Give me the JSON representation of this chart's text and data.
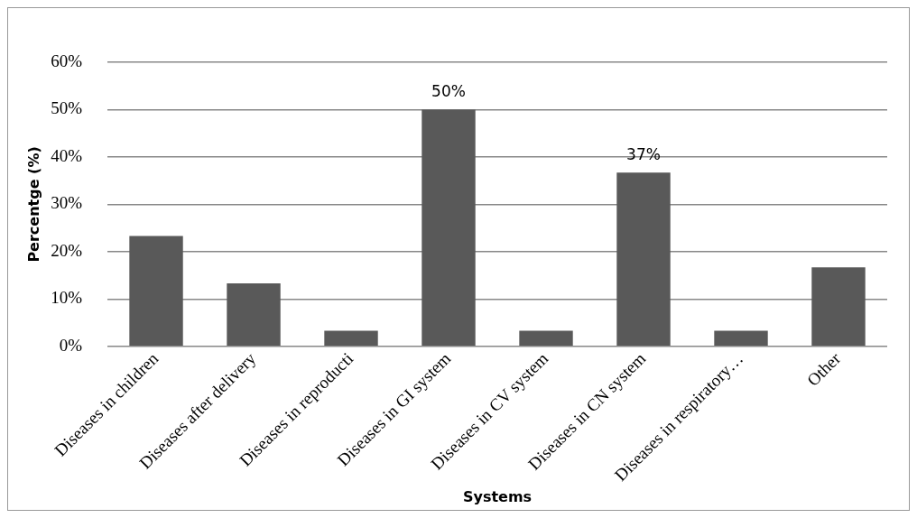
{
  "chart_data": {
    "type": "bar",
    "xlabel": "Systems",
    "ylabel": "Percentge (%)",
    "categories": [
      "Diseases in children",
      "Diseases after delivery",
      "Diseases in reproducti",
      "Diseases in GI system",
      "Diseases in CV system",
      "Diseases in CN system",
      "Diseases in respiratory…",
      "Other"
    ],
    "values": [
      23.3,
      13.3,
      3.3,
      50,
      3.3,
      36.7,
      3.3,
      16.7
    ],
    "value_labels": [
      null,
      null,
      null,
      "50%",
      null,
      "37%",
      null,
      null
    ],
    "color": "#595959",
    "ylim": [
      0,
      60
    ],
    "yticks": [
      {
        "value": 0,
        "label": "0%"
      },
      {
        "value": 10,
        "label": "10%"
      },
      {
        "value": 20,
        "label": "20%"
      },
      {
        "value": 30,
        "label": "30%"
      },
      {
        "value": 40,
        "label": "40%"
      },
      {
        "value": 50,
        "label": "50%"
      },
      {
        "value": 60,
        "label": "60%"
      }
    ],
    "grid": "y",
    "legend": false
  }
}
